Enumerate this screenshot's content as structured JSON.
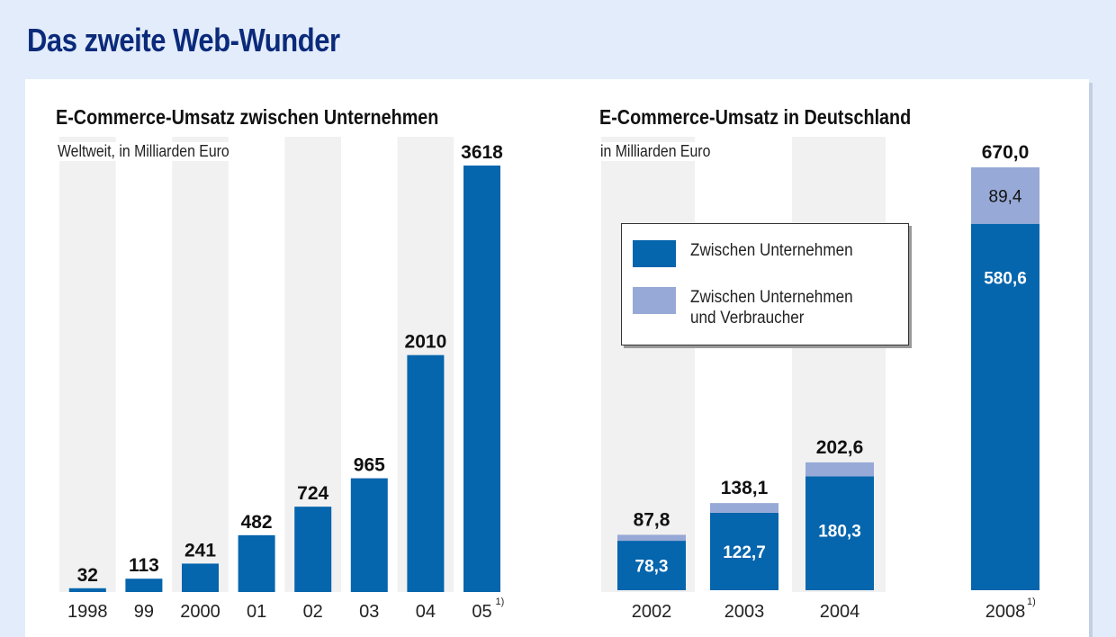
{
  "title": "Das zweite Web-Wunder",
  "colors": {
    "primary": "#0565ad",
    "secondary": "#97a9d6",
    "title": "#0b2a7a"
  },
  "chart_data": [
    {
      "type": "bar",
      "title": "E-Commerce-Umsatz zwischen Unternehmen",
      "subtitle": "Weltweit, in Milliarden Euro",
      "categories": [
        "1998",
        "99",
        "2000",
        "01",
        "02",
        "03",
        "04",
        "05"
      ],
      "category_notes": [
        "",
        "",
        "",
        "",
        "",
        "",
        "",
        "1)"
      ],
      "values": [
        32,
        113,
        241,
        482,
        724,
        965,
        2010,
        3618
      ],
      "value_labels": [
        "32",
        "113",
        "241",
        "482",
        "724",
        "965",
        "2010",
        "3618"
      ],
      "ylim": [
        0,
        3618
      ],
      "grid": false
    },
    {
      "type": "bar",
      "stacked": true,
      "title": "E-Commerce-Umsatz in Deutschland",
      "subtitle": "in Milliarden Euro",
      "categories": [
        "2002",
        "2003",
        "2004",
        "2008"
      ],
      "category_notes": [
        "",
        "",
        "",
        "1)"
      ],
      "series": [
        {
          "name": "Zwischen Unternehmen",
          "values": [
            78.3,
            122.7,
            180.3,
            580.6
          ],
          "labels": [
            "78,3",
            "122,7",
            "180,3",
            "580,6"
          ]
        },
        {
          "name": "Zwischen Unternehmen\nund Verbraucher",
          "values": [
            9.5,
            15.4,
            22.3,
            89.4
          ],
          "labels": [
            "",
            "",
            "",
            "89,4"
          ]
        }
      ],
      "totals": [
        87.8,
        138.1,
        202.6,
        670.0
      ],
      "total_labels": [
        "87,8",
        "138,1",
        "202,6",
        "670,0"
      ],
      "ylim": [
        0,
        670
      ],
      "legend_position": "upper-center"
    }
  ]
}
